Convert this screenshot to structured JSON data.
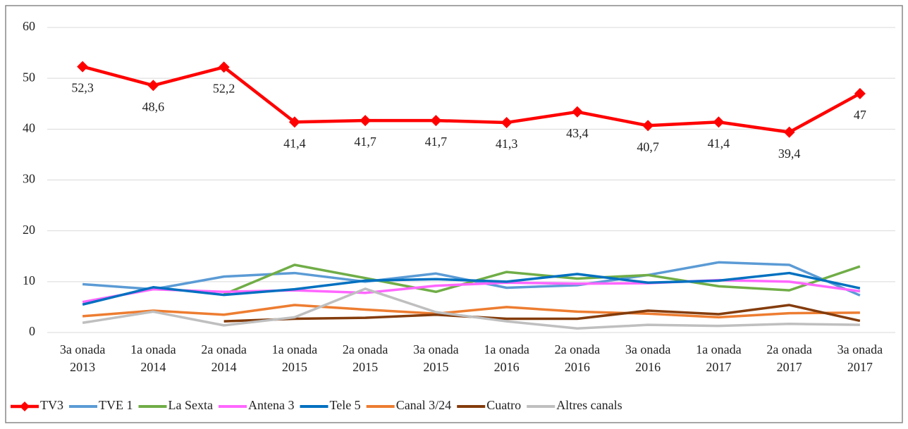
{
  "chart_data": {
    "type": "line",
    "categories": [
      [
        "3a onada",
        "2013"
      ],
      [
        "1a onada",
        "2014"
      ],
      [
        "2a onada",
        "2014"
      ],
      [
        "1a onada",
        "2015"
      ],
      [
        "2a onada",
        "2015"
      ],
      [
        "3a onada",
        "2015"
      ],
      [
        "1a onada",
        "2016"
      ],
      [
        "2a onada",
        "2016"
      ],
      [
        "3a onada",
        "2016"
      ],
      [
        "1a onada",
        "2017"
      ],
      [
        "2a onada",
        "2017"
      ],
      [
        "3a onada",
        "2017"
      ]
    ],
    "series": [
      {
        "name": "TV3",
        "color": "#ff0000",
        "values": [
          52.3,
          48.6,
          52.2,
          41.4,
          41.7,
          41.7,
          41.3,
          43.4,
          40.7,
          41.4,
          39.4,
          47
        ],
        "value_labels": [
          "52,3",
          "48,6",
          "52,2",
          "41,4",
          "41,7",
          "41,7",
          "41,3",
          "43,4",
          "40,7",
          "41,4",
          "39,4",
          "47"
        ]
      },
      {
        "name": "TVE 1",
        "color": "#5b9bd5",
        "values": [
          9.5,
          8.5,
          11,
          11.7,
          10,
          11.6,
          8.8,
          9.3,
          11.3,
          13.8,
          13.3,
          7.3
        ]
      },
      {
        "name": "La Sexta",
        "color": "#70ad47",
        "values": [
          null,
          null,
          7.5,
          13.3,
          10.7,
          8,
          11.9,
          10.6,
          11.3,
          9.1,
          8.3,
          13
        ]
      },
      {
        "name": "Antena 3",
        "color": "#ff66ff",
        "values": [
          6,
          8.5,
          8,
          8.3,
          7.8,
          9.2,
          9.8,
          9.6,
          9.7,
          10.3,
          10,
          8.1
        ]
      },
      {
        "name": "Tele 5",
        "color": "#0070c0",
        "values": [
          5.5,
          8.9,
          7.4,
          8.5,
          10.2,
          10.5,
          10,
          11.5,
          9.8,
          10.2,
          11.7,
          8.7
        ]
      },
      {
        "name": "Canal 3/24",
        "color": "#ed7d31",
        "values": [
          3.2,
          4.3,
          3.5,
          5.4,
          4.5,
          3.7,
          5,
          4.1,
          3.7,
          3,
          3.8,
          3.9
        ]
      },
      {
        "name": "Cuatro",
        "color": "#843c0c",
        "values": [
          null,
          null,
          2.2,
          2.7,
          2.9,
          3.5,
          2.7,
          2.7,
          4.3,
          3.6,
          5.4,
          2.3
        ]
      },
      {
        "name": "Altres canals",
        "color": "#bfbfbf",
        "values": [
          1.9,
          4.1,
          1.4,
          3,
          8.6,
          4,
          2.2,
          0.8,
          1.5,
          1.3,
          1.7,
          1.5
        ]
      }
    ],
    "ylim": [
      0,
      60
    ],
    "yticks": [
      0,
      10,
      20,
      30,
      40,
      50,
      60
    ],
    "grid": true,
    "legend": "bottom"
  }
}
